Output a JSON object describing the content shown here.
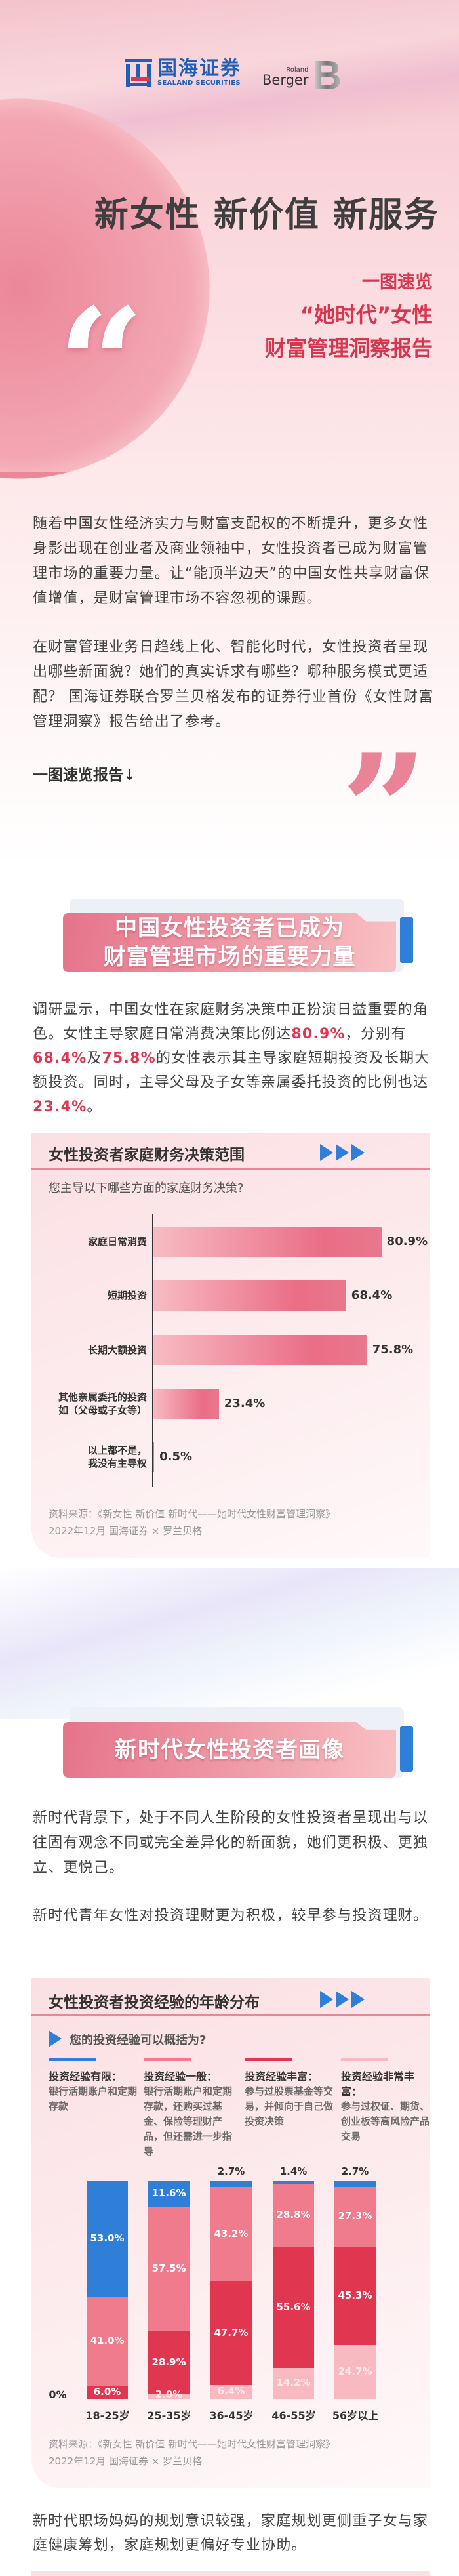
{
  "logos": {
    "sealand_cn": "国海证券",
    "sealand_en": "SEALAND SECURITIES",
    "rb_small": "Roland",
    "rb_big": "Berger",
    "rb_mark": "B"
  },
  "hero": {
    "title": "新女性 新价值 新服务",
    "sub1": "一图速览",
    "sub2": "“她时代”女性",
    "sub3": "财富管理洞察报告",
    "open_quote": "“",
    "close_quote": "”"
  },
  "intro": {
    "p1": "随着中国女性经济实力与财富支配权的不断提升，更多女性身影出现在创业者及商业领袖中，女性投资者已成为财富管理市场的重要力量。让“能顶半边天”的中国女性共享财富保值增值，是财富管理市场不容忽视的课题。",
    "p2": "在财富管理业务日趋线上化、智能化时代，女性投资者呈现出哪些新面貌？她们的真实诉求有哪些？哪种服务模式更适配？ 国海证券联合罗兰贝格发布的证券行业首份《女性财富管理洞察》报告给出了参考。",
    "lead": "一图速览报告↓"
  },
  "section1": {
    "banner_line1": "中国女性投资者已成为",
    "banner_line2": "财富管理市场的重要力量",
    "p_a": "调研显示，中国女性在家庭财务决策中正扮演日益重要的角色。女性主导家庭日常消费决策比例达",
    "p_v1": "80.9%",
    "p_b": "，分别有",
    "p_v2": "68.4%",
    "p_c": "及",
    "p_v3": "75.8%",
    "p_d": "的女性表示其主导家庭短期投资及长期大额投资。同时，主导父母及子女等亲属委托投资的比例也达",
    "p_v4": "23.4%",
    "p_e": "。"
  },
  "section2": {
    "banner": "新时代女性投资者画像",
    "p1": "新时代背景下，处于不同人生阶段的女性投资者呈现出与以往固有观念不同或完全差异化的新面貌，她们更积极、更独立、更悦己。",
    "p2": "新时代青年女性对投资理财更为积极，较早参与投资理财。",
    "p3": "新时代职场妈妈的规划意识较强，家庭规划更侧重子女与家庭健康筹划，家庭规划更偏好专业协助。"
  },
  "chart_data": [
    {
      "type": "bar",
      "orientation": "horizontal",
      "title": "女性投资者家庭财务决策范围",
      "question": "您主导以下哪些方面的家庭财务决策?",
      "categories": [
        "家庭日常消费",
        "短期投资",
        "长期大额投资",
        "其他亲属委托的投资如（父母或子女等）",
        "以上都不是，我没有主导权"
      ],
      "category_lines": [
        [
          "家庭日常消费"
        ],
        [
          "短期投资"
        ],
        [
          "长期大额投资"
        ],
        [
          "其他亲属委托的投资",
          "如（父母或子女等）"
        ],
        [
          "以上都不是，",
          "我没有主导权"
        ]
      ],
      "values": [
        80.9,
        68.4,
        75.8,
        23.4,
        0.5
      ],
      "value_labels": [
        "80.9%",
        "68.4%",
        "75.8%",
        "23.4%",
        "0.5%"
      ],
      "unit": "%",
      "source1": "资料来源：《新女性 新价值 新时代——她时代女性财富管理洞察》",
      "source2": "2022年12月 国海证券 × 罗兰贝格",
      "colors": {
        "bar_start": "#f8bcc3",
        "bar_end": "#e96d86"
      }
    },
    {
      "type": "bar",
      "stacked": true,
      "percent": true,
      "title": "女性投资者投资经验的年龄分布",
      "question": "您的投资经验可以概括为?",
      "categories": [
        "18-25岁",
        "25-35岁",
        "36-45岁",
        "46-55岁",
        "56岁以上"
      ],
      "y_zero_label": "0%",
      "series": [
        {
          "name": "投资经验有限：",
          "desc": "银行活期账户和定期存款",
          "color": "#2f7fd8",
          "values": [
            53.0,
            11.6,
            2.7,
            1.4,
            2.7
          ]
        },
        {
          "name": "投资经验一般：",
          "desc": "银行活期账户和定期存款，还购买过基金、保险等理财产品，但还需进一步指导",
          "color": "#ef7b8c",
          "values": [
            41.0,
            57.5,
            43.2,
            28.8,
            27.3
          ]
        },
        {
          "name": "投资经验丰富：",
          "desc": "参与过股票基金等交易，并倾向于自己做投资决策",
          "color": "#e0364f",
          "values": [
            6.0,
            28.9,
            47.7,
            55.6,
            45.3
          ]
        },
        {
          "name": "投资经验非常丰富：",
          "desc": "参与过权证、期货、创业板等高风险产品交易",
          "color": "#f9b9c0",
          "values": [
            0,
            2.0,
            6.4,
            14.2,
            24.7
          ]
        }
      ],
      "source1": "资料来源：《新女性 新价值 新时代——她时代女性财富管理洞察》",
      "source2": "2022年12月 国海证券 × 罗兰贝格"
    }
  ]
}
